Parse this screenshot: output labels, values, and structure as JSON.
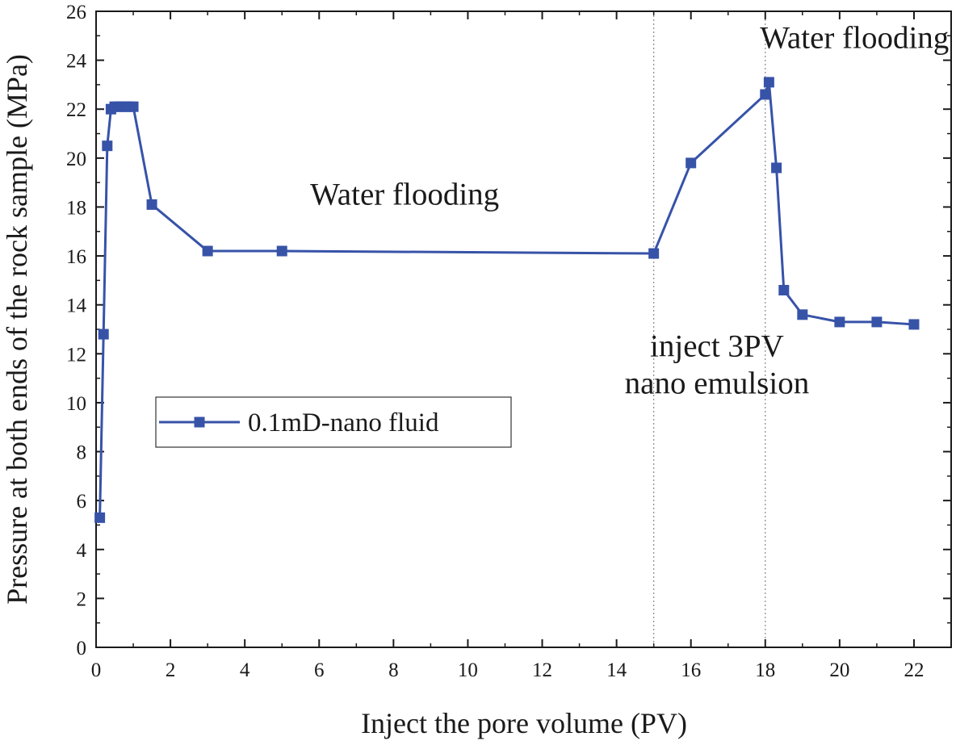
{
  "chart_data": {
    "type": "line",
    "title": "",
    "xlabel": "Inject the pore volume (PV)",
    "ylabel": "Pressure at both ends of the rock sample (MPa)",
    "xlim": [
      0,
      23
    ],
    "ylim": [
      0,
      26
    ],
    "xticks": [
      0,
      2,
      4,
      6,
      8,
      10,
      12,
      14,
      16,
      18,
      20,
      22
    ],
    "yticks": [
      0,
      2,
      4,
      6,
      8,
      10,
      12,
      14,
      16,
      18,
      20,
      22,
      24,
      26
    ],
    "grid": false,
    "legend_position": "middle-left",
    "series": [
      {
        "name": "0.1mD-nano fluid",
        "color": "#3753a8",
        "marker": "square",
        "x": [
          0.1,
          0.2,
          0.3,
          0.4,
          0.5,
          0.6,
          0.7,
          0.8,
          0.9,
          1.0,
          1.5,
          3,
          5,
          15,
          16,
          18,
          18.1,
          18.3,
          18.5,
          19,
          20,
          21,
          22
        ],
        "y": [
          5.3,
          12.8,
          20.5,
          22.0,
          22.1,
          22.1,
          22.1,
          22.1,
          22.1,
          22.1,
          18.1,
          16.2,
          16.2,
          16.1,
          19.8,
          22.6,
          23.1,
          19.6,
          14.6,
          13.6,
          13.3,
          13.3,
          13.2
        ]
      }
    ],
    "reference_lines": [
      {
        "axis": "x",
        "value": 15,
        "style": "dotted",
        "color": "#888888"
      },
      {
        "axis": "x",
        "value": 18,
        "style": "dotted",
        "color": "#888888"
      }
    ],
    "annotations": [
      {
        "lines": [
          "Water flooding"
        ],
        "x": 8.3,
        "y": 18.1
      },
      {
        "lines": [
          "inject 3PV",
          "nano emulsion"
        ],
        "x": 16.7,
        "y": 11.9
      },
      {
        "lines": [
          "Water flooding"
        ],
        "x": 20.4,
        "y": 24.5
      }
    ]
  }
}
